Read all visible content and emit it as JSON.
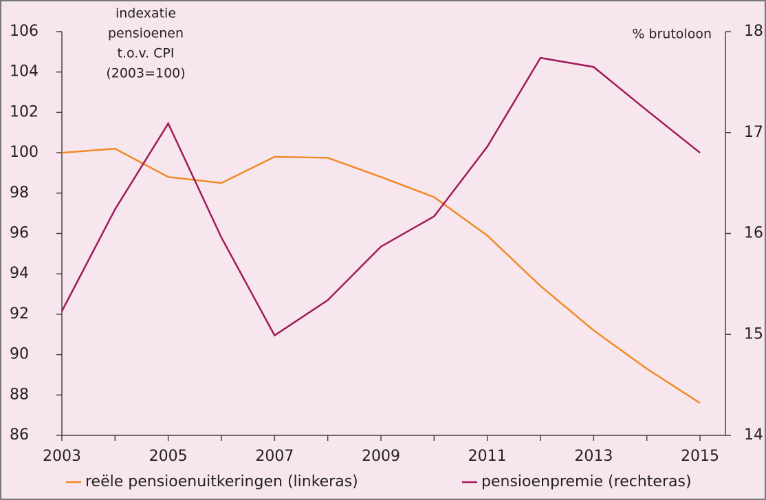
{
  "chart_data": {
    "type": "line",
    "x": [
      2003,
      2004,
      2005,
      2006,
      2007,
      2008,
      2009,
      2010,
      2011,
      2012,
      2013,
      2014,
      2015
    ],
    "xlim": [
      2003,
      2015
    ],
    "xticks": [
      2003,
      2005,
      2007,
      2009,
      2011,
      2013,
      2015
    ],
    "ylim": [
      86,
      106
    ],
    "yticks": [
      86,
      88,
      90,
      92,
      94,
      96,
      98,
      100,
      102,
      104,
      106
    ],
    "y2lim": [
      14,
      18
    ],
    "y2ticks": [
      14,
      15,
      16,
      17,
      18
    ],
    "left_axis_label": [
      "indexatie",
      "pensioenen",
      "t.o.v. CPI",
      "(2003=100)"
    ],
    "right_axis_label": "% brutoloon",
    "series": [
      {
        "name": "reële pensioenuitkeringen (linkeras)",
        "color": "#f08a24",
        "values": [
          100.0,
          100.2,
          98.8,
          98.5,
          99.8,
          99.75,
          98.8,
          97.8,
          95.9,
          93.4,
          91.2,
          89.3,
          87.6
        ]
      },
      {
        "name": "pensioenpremie (rechteras)",
        "color": "#a0195a",
        "axis": "y2",
        "values": [
          15.23,
          16.24,
          17.09,
          15.96,
          14.99,
          15.34,
          15.87,
          16.17,
          16.86,
          17.74,
          17.65,
          17.22,
          16.8
        ]
      }
    ]
  }
}
